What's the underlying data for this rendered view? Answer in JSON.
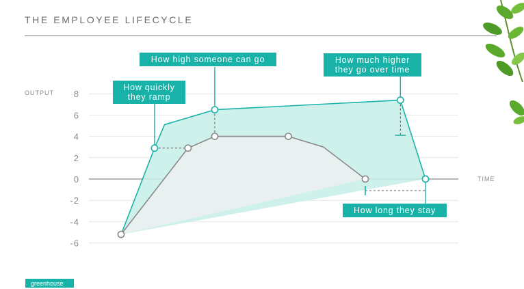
{
  "header": {
    "title": "THE EMPLOYEE LIFECYCLE"
  },
  "footer": {
    "brand": "greenhouse"
  },
  "colors": {
    "accent": "#19b2a8",
    "accent_fill": "#c6eee9",
    "baseline_line": "#8a8a8a",
    "baseline_fill": "#f2f2f2"
  },
  "callouts": {
    "ramp": "How quickly they ramp",
    "peak": "How high someone can go",
    "growth": "How much higher they go over time",
    "tenure": "How long they stay"
  },
  "chart_data": {
    "type": "area",
    "title": "",
    "xlabel": "TIME",
    "ylabel": "OUTPUT",
    "ylim": [
      -6,
      8
    ],
    "xlim": [
      0,
      12.3
    ],
    "yticks": [
      8,
      6,
      4,
      2,
      0,
      -2,
      -4,
      -6
    ],
    "grid": true,
    "series": [
      {
        "points": [
          [
            0,
            -5.2
          ],
          [
            1.0,
            2.9
          ],
          [
            1.3,
            5.1
          ],
          [
            2.8,
            6.5
          ],
          [
            8.35,
            7.4
          ],
          [
            9.1,
            0
          ]
        ],
        "markers": [
          [
            1.0,
            2.9
          ],
          [
            2.8,
            6.5
          ],
          [
            8.35,
            7.4
          ],
          [
            9.1,
            0
          ]
        ],
        "color": "#19b2a8"
      },
      {
        "points": [
          [
            0,
            -5.2
          ],
          [
            2.0,
            2.9
          ],
          [
            2.8,
            4.0
          ],
          [
            5.0,
            4.0
          ],
          [
            6.05,
            3.0
          ],
          [
            7.3,
            0
          ]
        ],
        "markers": [
          [
            0,
            -5.2
          ],
          [
            2.0,
            2.9
          ],
          [
            2.8,
            4.0
          ],
          [
            5.0,
            4.0
          ],
          [
            7.3,
            0
          ]
        ],
        "color": "#8a8a8a"
      }
    ]
  }
}
